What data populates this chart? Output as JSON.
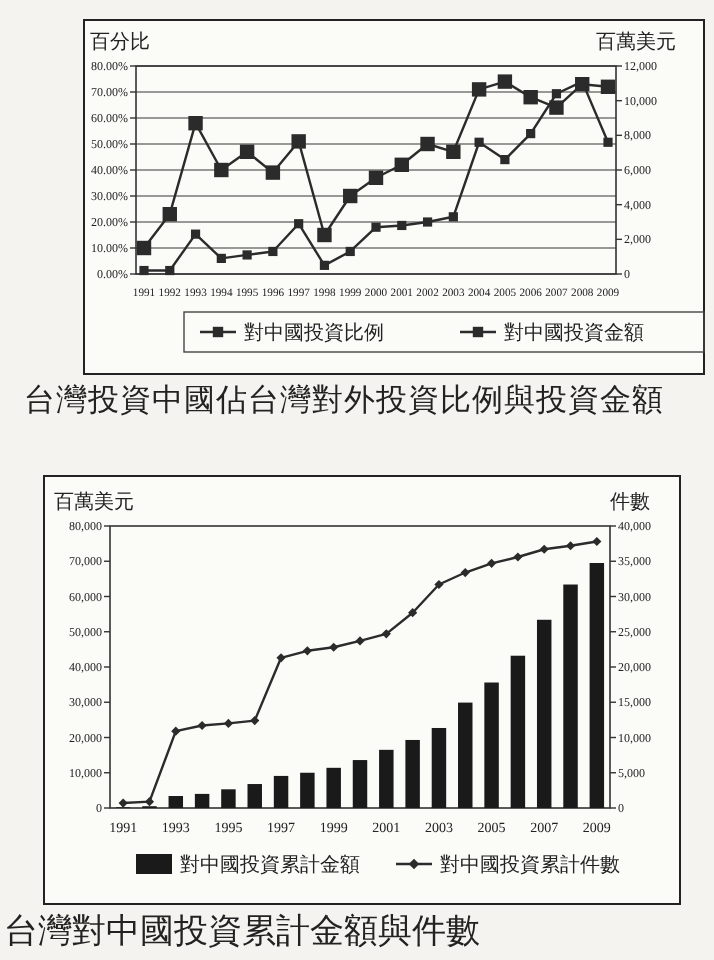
{
  "chart_data": [
    {
      "type": "line",
      "categories": [
        "1991",
        "1992",
        "1993",
        "1994",
        "1995",
        "1996",
        "1997",
        "1998",
        "1999",
        "2000",
        "2001",
        "2002",
        "2003",
        "2004",
        "2005",
        "2006",
        "2007",
        "2008",
        "2009"
      ],
      "ylabel": "百分比",
      "y2label": "百萬美元",
      "ylim": [
        0,
        80
      ],
      "yticks": [
        {
          "value": 0,
          "label": "0.00%"
        },
        {
          "value": 10,
          "label": "10.00%"
        },
        {
          "value": 20,
          "label": "20.00%"
        },
        {
          "value": 30,
          "label": "30.00%"
        },
        {
          "value": 40,
          "label": "40.00%"
        },
        {
          "value": 50,
          "label": "50.00%"
        },
        {
          "value": 60,
          "label": "60.00%"
        },
        {
          "value": 70,
          "label": "70.00%"
        },
        {
          "value": 80,
          "label": "80.00%"
        }
      ],
      "y2lim": [
        0,
        12000
      ],
      "y2ticks": [
        0,
        {
          "value": 2000,
          "label": "2,000"
        },
        {
          "value": 4000,
          "label": "4,000"
        },
        {
          "value": 6000,
          "label": "6,000"
        },
        {
          "value": 8000,
          "label": "8,000"
        },
        {
          "value": 10000,
          "label": "10,000"
        },
        {
          "value": 12000,
          "label": "12,000"
        }
      ],
      "grid": "y",
      "legend": "bottom",
      "marker": "square",
      "annotations": [
        "台灣投資中國佔台灣對外投資比例與投資金額"
      ],
      "series": [
        {
          "name": "對中國投資比例",
          "color": "#2b2b2b",
          "values": [
            10,
            23,
            58,
            40,
            47,
            39,
            51,
            15,
            30,
            37,
            42,
            50,
            47,
            71,
            74,
            68,
            64,
            73,
            72
          ]
        },
        {
          "name": "對中國投資金額",
          "color": "#2b2b2b",
          "axis": "y2",
          "values": [
            200,
            200,
            2300,
            900,
            1100,
            1300,
            2900,
            500,
            1300,
            2700,
            2800,
            3000,
            3300,
            7600,
            6600,
            8100,
            10400,
            11100,
            7600
          ]
        }
      ]
    },
    {
      "type": "bar",
      "categories": [
        "1991",
        null,
        "1993",
        null,
        "1995",
        null,
        "1997",
        null,
        "1999",
        null,
        "2001",
        null,
        "2003",
        null,
        "2005",
        null,
        "2007",
        null,
        "2009"
      ],
      "ylabel": "百萬美元",
      "y2label": "件數",
      "ylim": [
        0,
        80000
      ],
      "yticks": [
        0,
        {
          "value": 10000,
          "label": "10,000"
        },
        {
          "value": 20000,
          "label": "20,000"
        },
        {
          "value": 30000,
          "label": "30,000"
        },
        {
          "value": 40000,
          "label": "40,000"
        },
        {
          "value": 50000,
          "label": "50,000"
        },
        {
          "value": 60000,
          "label": "60,000"
        },
        {
          "value": 70000,
          "label": "70,000"
        },
        {
          "value": 80000,
          "label": "80,000"
        }
      ],
      "y2lim": [
        0,
        40000
      ],
      "y2ticks": [
        0,
        {
          "value": 5000,
          "label": "5,000"
        },
        {
          "value": 10000,
          "label": "10,000"
        },
        {
          "value": 15000,
          "label": "15,000"
        },
        {
          "value": 20000,
          "label": "20,000"
        },
        {
          "value": 25000,
          "label": "25,000"
        },
        {
          "value": 30000,
          "label": "30,000"
        },
        {
          "value": 35000,
          "label": "35,000"
        },
        {
          "value": 40000,
          "label": "40,000"
        }
      ],
      "legend": "bottom",
      "annotations": [
        "台灣對中國投資累計金額與件數"
      ],
      "series": [
        {
          "name": "對中國投資累計金額",
          "color": "#1a1a1a",
          "values": [
            200,
            500,
            3400,
            4000,
            5300,
            6800,
            9100,
            10000,
            11400,
            13600,
            16500,
            19300,
            22700,
            29900,
            35600,
            43200,
            53400,
            63400,
            69500
          ]
        },
        {
          "name": "對中國投資累計件數",
          "type": "line",
          "axis": "y2",
          "marker": "diamond",
          "color": "#2b2b2b",
          "values": [
            700,
            900,
            10900,
            11700,
            12000,
            12400,
            21300,
            22300,
            22800,
            23700,
            24700,
            27700,
            31700,
            33400,
            34700,
            35600,
            36700,
            37200,
            37800
          ]
        }
      ]
    }
  ]
}
